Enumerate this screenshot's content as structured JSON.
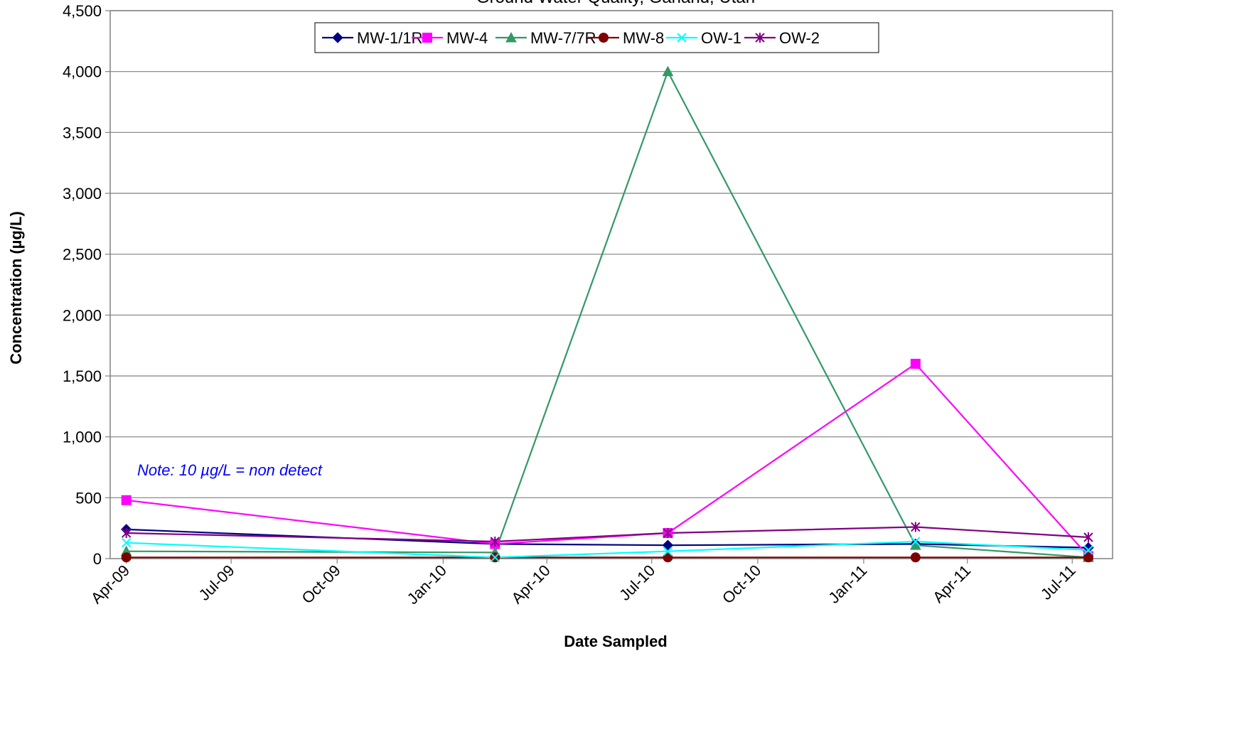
{
  "chart_data": {
    "type": "line",
    "title": "Ground Water Quality, Garland, Utah",
    "xlabel": "Date Sampled",
    "ylabel": "Concentration (µg/L)",
    "ylim": [
      0,
      4500
    ],
    "yticks": [
      0,
      500,
      1000,
      1500,
      2000,
      2500,
      3000,
      3500,
      4000,
      4500
    ],
    "ytick_labels": [
      "0",
      "500",
      "1,000",
      "1,500",
      "2,000",
      "2,500",
      "3,000",
      "3,500",
      "4,000",
      "4,500"
    ],
    "xlim": [
      "2009-03-18",
      "2011-08-05"
    ],
    "xticks": [
      "2009-04-01",
      "2009-07-01",
      "2009-10-01",
      "2010-01-01",
      "2010-04-01",
      "2010-07-01",
      "2010-10-01",
      "2011-01-01",
      "2011-04-01",
      "2011-07-01"
    ],
    "xtick_labels": [
      "Apr-09",
      "Jul-09",
      "Oct-09",
      "Jan-10",
      "Apr-10",
      "Jul-10",
      "Oct-10",
      "Jan-11",
      "Apr-11",
      "Jul-11"
    ],
    "grid": true,
    "legend_position": "top-center",
    "annotation": "Note:  10 µg/L = non detect",
    "annotation_color": "#0000FF",
    "x": [
      "2009-04-01",
      "2010-02-15",
      "2010-07-15",
      "2011-02-15",
      "2011-07-15"
    ],
    "series": [
      {
        "name": "MW-1/1R",
        "color": "#000080",
        "marker": "diamond",
        "values": [
          240,
          120,
          110,
          120,
          90
        ]
      },
      {
        "name": "MW-4",
        "color": "#FF00FF",
        "marker": "square",
        "values": [
          480,
          120,
          210,
          1600,
          20
        ]
      },
      {
        "name": "MW-7/7R",
        "color": "#339966",
        "marker": "triangle",
        "values": [
          60,
          50,
          4000,
          110,
          10
        ]
      },
      {
        "name": "MW-8",
        "color": "#800000",
        "marker": "circle",
        "values": [
          10,
          10,
          10,
          10,
          10
        ]
      },
      {
        "name": "OW-1",
        "color": "#00FFFF",
        "marker": "x",
        "values": [
          130,
          10,
          60,
          140,
          70
        ]
      },
      {
        "name": "OW-2",
        "color": "#800080",
        "marker": "star",
        "values": [
          210,
          140,
          210,
          260,
          175
        ]
      }
    ]
  }
}
